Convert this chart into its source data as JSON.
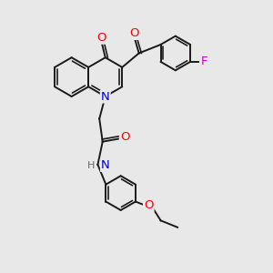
{
  "bg_color": "#e8e8e8",
  "bond_color": "#1a1a1a",
  "bond_width": 1.4,
  "atom_colors": {
    "O": "#ff0000",
    "N": "#0000cc",
    "F": "#cc00cc",
    "H": "#666666",
    "C": "#1a1a1a"
  },
  "font_size": 8.5,
  "fig_size": [
    3.0,
    3.0
  ],
  "dpi": 100,
  "xlim": [
    0,
    10
  ],
  "ylim": [
    0,
    10
  ]
}
